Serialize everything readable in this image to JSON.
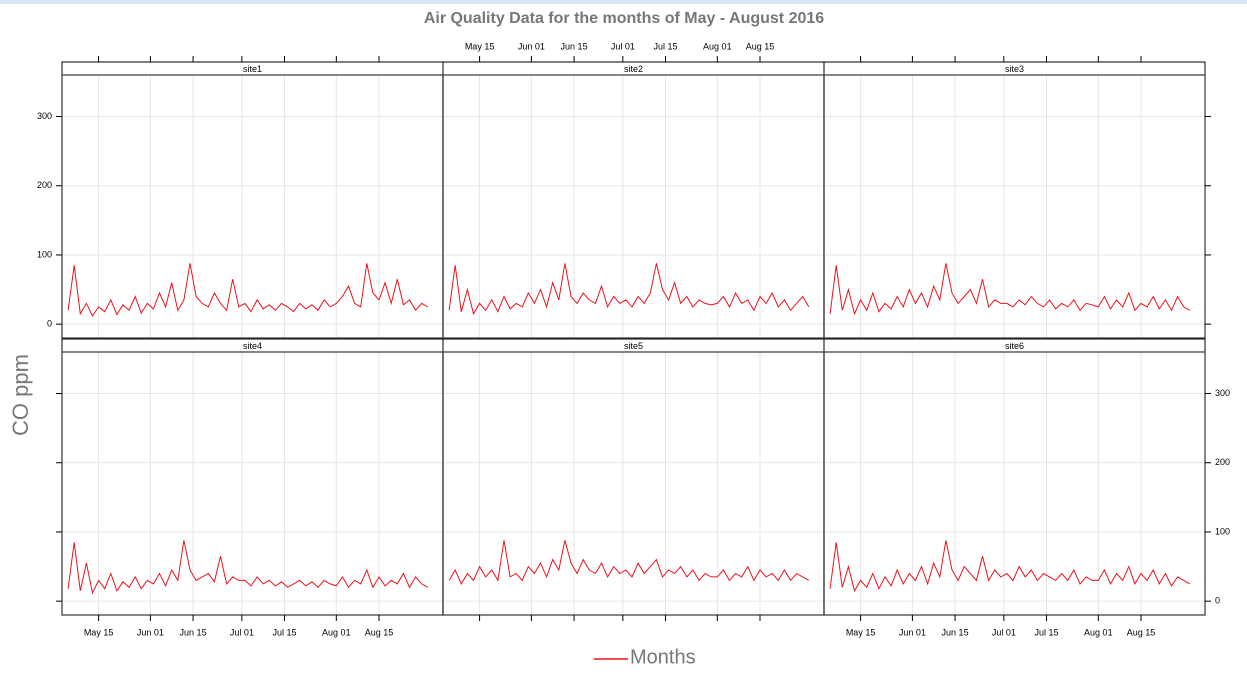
{
  "chart_data": {
    "type": "line",
    "title": "Air Quality Data for the months of May - August 2016",
    "ylabel": "CO ppm",
    "xlabel": "Months",
    "grid": true,
    "x": [
      "05-05",
      "05-07",
      "05-09",
      "05-11",
      "05-13",
      "05-15",
      "05-17",
      "05-19",
      "05-21",
      "05-23",
      "05-25",
      "05-27",
      "05-29",
      "05-31",
      "06-02",
      "06-04",
      "06-06",
      "06-08",
      "06-10",
      "06-12",
      "06-14",
      "06-16",
      "06-18",
      "06-20",
      "06-22",
      "06-24",
      "06-26",
      "06-28",
      "06-30",
      "07-02",
      "07-04",
      "07-06",
      "07-08",
      "07-10",
      "07-12",
      "07-14",
      "07-16",
      "07-18",
      "07-20",
      "07-22",
      "07-24",
      "07-26",
      "07-28",
      "07-30",
      "08-01",
      "08-03",
      "08-05",
      "08-07",
      "08-09",
      "08-11",
      "08-13",
      "08-15",
      "08-17",
      "08-19",
      "08-21",
      "08-23",
      "08-25",
      "08-27",
      "08-29",
      "08-31"
    ],
    "xlim": [
      "05-03",
      "09-05"
    ],
    "xticks": [
      {
        "value": "05-15",
        "label": "May 15"
      },
      {
        "value": "06-01",
        "label": "Jun 01"
      },
      {
        "value": "06-15",
        "label": "Jun 15"
      },
      {
        "value": "07-01",
        "label": "Jul 01"
      },
      {
        "value": "07-15",
        "label": "Jul 15"
      },
      {
        "value": "08-01",
        "label": "Aug 01"
      },
      {
        "value": "08-15",
        "label": "Aug 15"
      }
    ],
    "ylim": [
      -20,
      360
    ],
    "yticks": [
      0,
      100,
      200,
      300
    ],
    "series": [
      {
        "name": "site1",
        "color": "#e8141c",
        "values": [
          20,
          85,
          15,
          30,
          12,
          25,
          18,
          35,
          14,
          28,
          20,
          40,
          16,
          30,
          22,
          45,
          25,
          60,
          20,
          35,
          88,
          40,
          30,
          25,
          45,
          30,
          20,
          65,
          25,
          30,
          18,
          35,
          22,
          28,
          20,
          30,
          25,
          18,
          30,
          22,
          28,
          20,
          35,
          25,
          30,
          40,
          55,
          30,
          25,
          88,
          45,
          35,
          60,
          30,
          65,
          28,
          35,
          20,
          30,
          25
        ]
      },
      {
        "name": "site2",
        "color": "#e8141c",
        "values": [
          20,
          85,
          18,
          50,
          15,
          30,
          20,
          35,
          18,
          40,
          22,
          30,
          25,
          45,
          30,
          50,
          25,
          60,
          35,
          88,
          40,
          30,
          45,
          35,
          30,
          55,
          25,
          40,
          30,
          35,
          25,
          40,
          30,
          45,
          88,
          50,
          35,
          60,
          30,
          40,
          25,
          35,
          30,
          28,
          30,
          40,
          25,
          45,
          30,
          35,
          20,
          40,
          30,
          45,
          25,
          35,
          20,
          30,
          40,
          25
        ]
      },
      {
        "name": "site3",
        "color": "#e8141c",
        "values": [
          15,
          85,
          20,
          50,
          15,
          35,
          20,
          45,
          18,
          30,
          22,
          40,
          25,
          50,
          30,
          45,
          25,
          55,
          35,
          88,
          45,
          30,
          40,
          50,
          30,
          65,
          25,
          35,
          30,
          30,
          25,
          35,
          28,
          40,
          30,
          25,
          35,
          22,
          30,
          25,
          35,
          20,
          30,
          28,
          25,
          40,
          22,
          35,
          25,
          45,
          20,
          30,
          25,
          40,
          22,
          35,
          20,
          40,
          25,
          20
        ]
      },
      {
        "name": "site4",
        "color": "#e8141c",
        "values": [
          18,
          85,
          15,
          55,
          12,
          30,
          18,
          40,
          15,
          28,
          20,
          35,
          18,
          30,
          25,
          40,
          22,
          45,
          30,
          88,
          45,
          30,
          35,
          40,
          28,
          65,
          25,
          35,
          30,
          30,
          22,
          35,
          25,
          30,
          22,
          28,
          20,
          25,
          30,
          22,
          28,
          20,
          30,
          25,
          22,
          35,
          20,
          30,
          25,
          45,
          20,
          35,
          22,
          30,
          25,
          40,
          20,
          35,
          25,
          20
        ]
      },
      {
        "name": "site5",
        "color": "#e8141c",
        "values": [
          30,
          45,
          25,
          40,
          30,
          50,
          35,
          45,
          30,
          88,
          35,
          40,
          30,
          50,
          40,
          55,
          35,
          60,
          45,
          88,
          55,
          40,
          60,
          45,
          40,
          55,
          35,
          50,
          40,
          45,
          35,
          55,
          40,
          50,
          60,
          35,
          45,
          40,
          50,
          35,
          45,
          30,
          40,
          35,
          35,
          45,
          30,
          40,
          35,
          50,
          30,
          45,
          35,
          40,
          30,
          45,
          30,
          40,
          35,
          30
        ]
      },
      {
        "name": "site6",
        "color": "#e8141c",
        "values": [
          18,
          85,
          20,
          50,
          15,
          30,
          20,
          40,
          18,
          35,
          22,
          45,
          25,
          40,
          30,
          50,
          25,
          55,
          35,
          88,
          45,
          30,
          50,
          40,
          30,
          65,
          30,
          45,
          35,
          40,
          30,
          50,
          35,
          45,
          30,
          40,
          35,
          30,
          40,
          30,
          45,
          25,
          35,
          30,
          30,
          45,
          25,
          40,
          30,
          50,
          25,
          40,
          30,
          45,
          25,
          40,
          22,
          35,
          30,
          25
        ]
      }
    ]
  }
}
